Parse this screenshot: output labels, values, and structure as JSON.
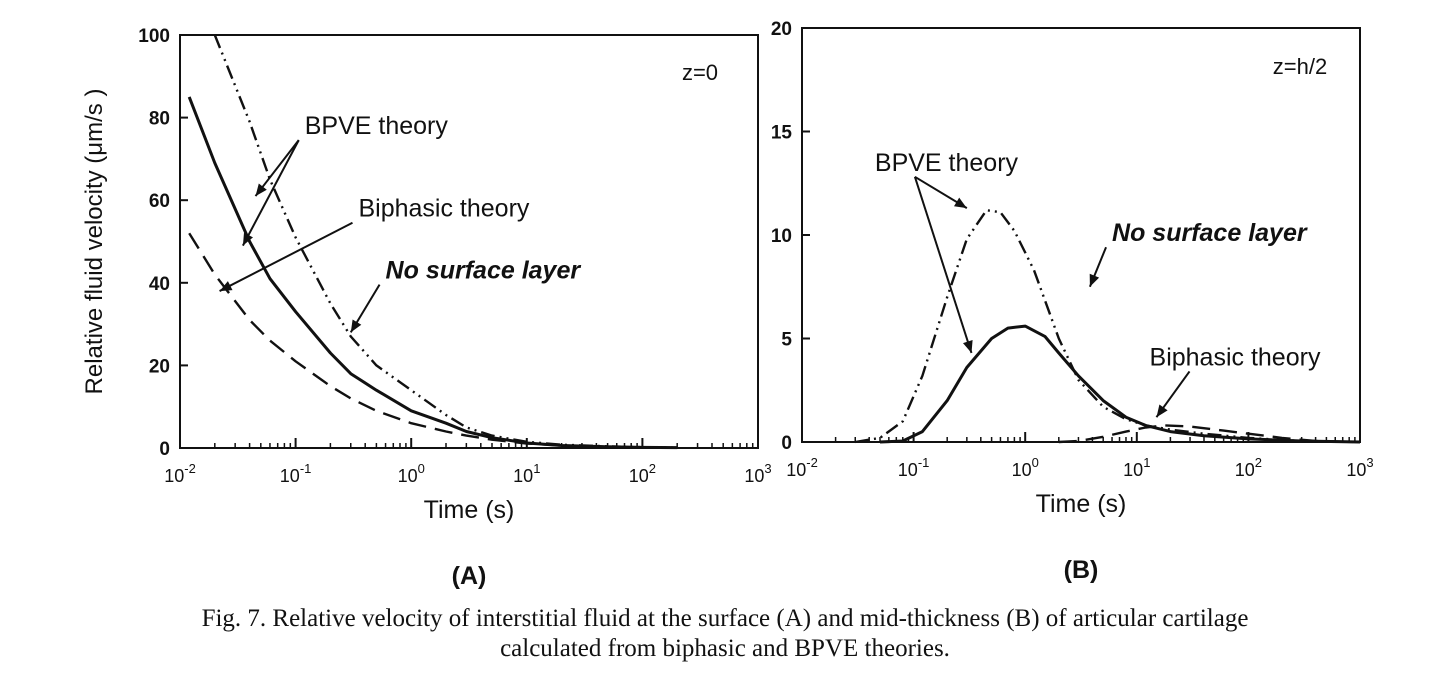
{
  "figure": {
    "caption_line1": "Fig. 7. Relative velocity of interstitial fluid at the surface (A) and mid-thickness (B) of articular cartilage",
    "caption_line2": "calculated from biphasic and BPVE theories."
  },
  "chart_data": [
    {
      "panel_label": "(A)",
      "type": "line",
      "corner_label": "z=0",
      "xlabel": "Time (s)",
      "ylabel": "Relative fluid velocity (μm/s )",
      "xscale": "log",
      "xlim": [
        0.01,
        1000
      ],
      "ylim": [
        0,
        100
      ],
      "yticks": [
        0,
        20,
        40,
        60,
        80,
        100
      ],
      "xticks": [
        {
          "base": "10",
          "exp": "-2",
          "value": 0.01
        },
        {
          "base": "10",
          "exp": "-1",
          "value": 0.1
        },
        {
          "base": "10",
          "exp": "0",
          "value": 1
        },
        {
          "base": "10",
          "exp": "1",
          "value": 10
        },
        {
          "base": "10",
          "exp": "2",
          "value": 100
        },
        {
          "base": "10",
          "exp": "3",
          "value": 1000
        }
      ],
      "series": [
        {
          "style": "dash-dot-dot",
          "x": [
            0.02,
            0.04,
            0.06,
            0.1,
            0.2,
            0.3,
            0.5,
            1,
            2,
            3,
            5,
            10,
            20,
            50,
            100,
            200
          ],
          "y": [
            100,
            79,
            65,
            51,
            35,
            27,
            20,
            14,
            8,
            5,
            3,
            1.5,
            0.8,
            0.4,
            0.2,
            0.1
          ]
        },
        {
          "style": "solid",
          "x": [
            0.012,
            0.02,
            0.04,
            0.06,
            0.1,
            0.2,
            0.3,
            0.5,
            1,
            2,
            3,
            5,
            10,
            20,
            50,
            100,
            200
          ],
          "y": [
            85,
            69,
            50,
            41,
            33,
            23,
            18,
            14,
            9,
            6,
            4,
            2.5,
            1.2,
            0.6,
            0.3,
            0.15,
            0.1
          ]
        },
        {
          "style": "dashed",
          "x": [
            0.012,
            0.02,
            0.04,
            0.06,
            0.1,
            0.2,
            0.3,
            0.5,
            1,
            2,
            3,
            5,
            10,
            20,
            50,
            100,
            200
          ],
          "y": [
            52,
            42,
            31,
            26,
            21,
            15,
            12,
            9,
            6,
            4,
            3,
            2,
            1.1,
            0.6,
            0.3,
            0.15,
            0.1
          ]
        }
      ],
      "annotations": [
        {
          "text": "BPVE theory",
          "italic": false,
          "x": 0.12,
          "y": 76,
          "targets": [
            [
              0.045,
              61
            ],
            [
              0.035,
              49
            ]
          ]
        },
        {
          "text": "Biphasic theory",
          "italic": false,
          "x": 0.35,
          "y": 56,
          "targets": [
            [
              0.022,
              38
            ]
          ]
        },
        {
          "text": "No surface layer",
          "italic": true,
          "x": 0.6,
          "y": 41,
          "targets": [
            [
              0.3,
              28
            ]
          ]
        }
      ]
    },
    {
      "panel_label": "(B)",
      "type": "line",
      "corner_label": "z=h/2",
      "xlabel": "Time (s)",
      "ylabel": "",
      "xscale": "log",
      "xlim": [
        0.01,
        1000
      ],
      "ylim": [
        0,
        20
      ],
      "yticks": [
        0,
        5,
        10,
        15,
        20
      ],
      "xticks": [
        {
          "base": "10",
          "exp": "-2",
          "value": 0.01
        },
        {
          "base": "10",
          "exp": "-1",
          "value": 0.1
        },
        {
          "base": "10",
          "exp": "0",
          "value": 1
        },
        {
          "base": "10",
          "exp": "1",
          "value": 10
        },
        {
          "base": "10",
          "exp": "2",
          "value": 100
        },
        {
          "base": "10",
          "exp": "3",
          "value": 1000
        }
      ],
      "series": [
        {
          "style": "dash-dot-dot",
          "x": [
            0.03,
            0.05,
            0.08,
            0.12,
            0.2,
            0.3,
            0.45,
            0.6,
            0.8,
            1.2,
            2,
            3,
            5,
            8,
            12,
            20,
            40,
            100,
            300,
            1000
          ],
          "y": [
            0,
            0.2,
            1,
            3.2,
            7,
            9.8,
            11.2,
            11.1,
            10.2,
            8.3,
            5,
            3,
            1.7,
            1.1,
            0.8,
            0.6,
            0.4,
            0.2,
            0.05,
            0
          ]
        },
        {
          "style": "solid",
          "x": [
            0.05,
            0.08,
            0.12,
            0.2,
            0.3,
            0.5,
            0.7,
            1,
            1.5,
            2,
            3,
            5,
            8,
            12,
            20,
            40,
            100,
            300,
            1000
          ],
          "y": [
            0,
            0.05,
            0.5,
            2,
            3.6,
            5,
            5.5,
            5.6,
            5.1,
            4.3,
            3.2,
            2,
            1.2,
            0.8,
            0.5,
            0.3,
            0.15,
            0.05,
            0
          ]
        },
        {
          "style": "dashed",
          "x": [
            2,
            3,
            5,
            8,
            12,
            18,
            30,
            60,
            100,
            200,
            400,
            1000
          ],
          "y": [
            0,
            0.05,
            0.25,
            0.5,
            0.7,
            0.8,
            0.75,
            0.55,
            0.4,
            0.2,
            0.05,
            0
          ]
        }
      ],
      "annotations": [
        {
          "text": "BPVE theory",
          "italic": false,
          "x": 0.045,
          "y": 13.1,
          "targets": [
            [
              0.3,
              11.3
            ],
            [
              0.33,
              4.3
            ]
          ]
        },
        {
          "text": "No surface layer",
          "italic": true,
          "x": 6,
          "y": 9.7,
          "targets": [
            [
              3.8,
              7.5
            ]
          ]
        },
        {
          "text": "Biphasic theory",
          "italic": false,
          "x": 13,
          "y": 3.7,
          "targets": [
            [
              15,
              1.2
            ]
          ]
        }
      ]
    }
  ]
}
